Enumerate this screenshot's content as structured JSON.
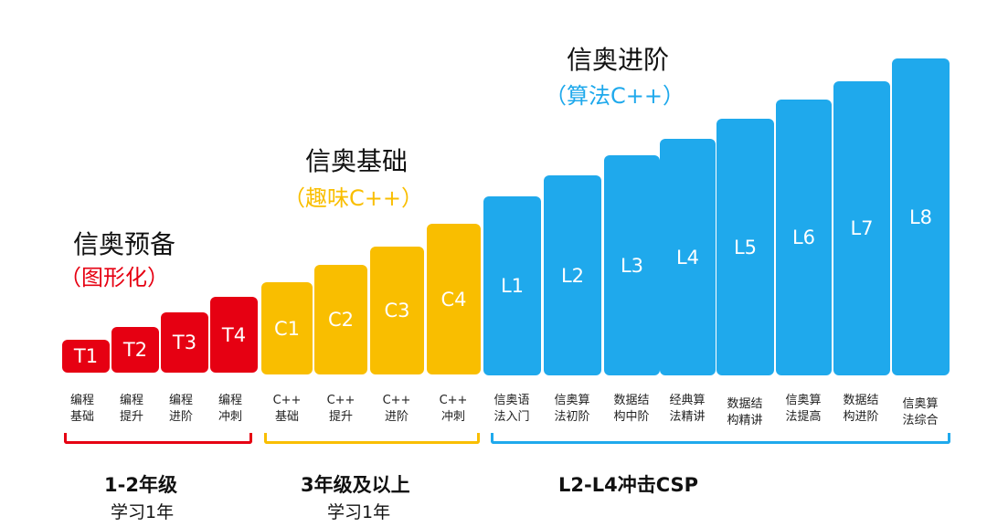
{
  "groups": [
    {
      "title": "信奥预备",
      "subtitle": "（图形化）",
      "bottom_main": "1-2年级",
      "bottom_sub": "学习1年",
      "color": "#e60012",
      "levels": [
        {
          "label": "T1",
          "lines": [
            "编程",
            "基础"
          ]
        },
        {
          "label": "T2",
          "lines": [
            "编程",
            "提升"
          ]
        },
        {
          "label": "T3",
          "lines": [
            "编程",
            "进阶"
          ]
        },
        {
          "label": "T4",
          "lines": [
            "编程",
            "冲刺"
          ]
        }
      ]
    },
    {
      "title": "信奥基础",
      "subtitle": "（趣味C++）",
      "bottom_main": "3年级及以上",
      "bottom_sub": "学习1年",
      "color": "#f9be00",
      "levels": [
        {
          "label": "C1",
          "lines": [
            "C++",
            "基础"
          ]
        },
        {
          "label": "C2",
          "lines": [
            "C++",
            "提升"
          ]
        },
        {
          "label": "C3",
          "lines": [
            "C++",
            "进阶"
          ]
        },
        {
          "label": "C4",
          "lines": [
            "C++",
            "冲刺"
          ]
        }
      ]
    },
    {
      "title": "信奥进阶",
      "subtitle": "（算法C++）",
      "bottom_main": "L2-L4冲击CSP",
      "color": "#1fa9ec",
      "levels": [
        {
          "label": "L1",
          "lines": [
            "信奥语",
            "法入门"
          ]
        },
        {
          "label": "L2",
          "lines": [
            "信奥算",
            "法初阶"
          ]
        },
        {
          "label": "L3",
          "lines": [
            "数据结",
            "构中阶"
          ]
        },
        {
          "label": "L4",
          "lines": [
            "经典算",
            "法精讲"
          ]
        },
        {
          "label": "L5",
          "lines": [
            "数据结",
            "构精讲"
          ]
        },
        {
          "label": "L6",
          "lines": [
            "信奥算",
            "法提高"
          ]
        },
        {
          "label": "L7",
          "lines": [
            "数据结",
            "构进阶"
          ]
        },
        {
          "label": "L8",
          "lines": [
            "信奥算",
            "法综合"
          ]
        }
      ]
    }
  ]
}
